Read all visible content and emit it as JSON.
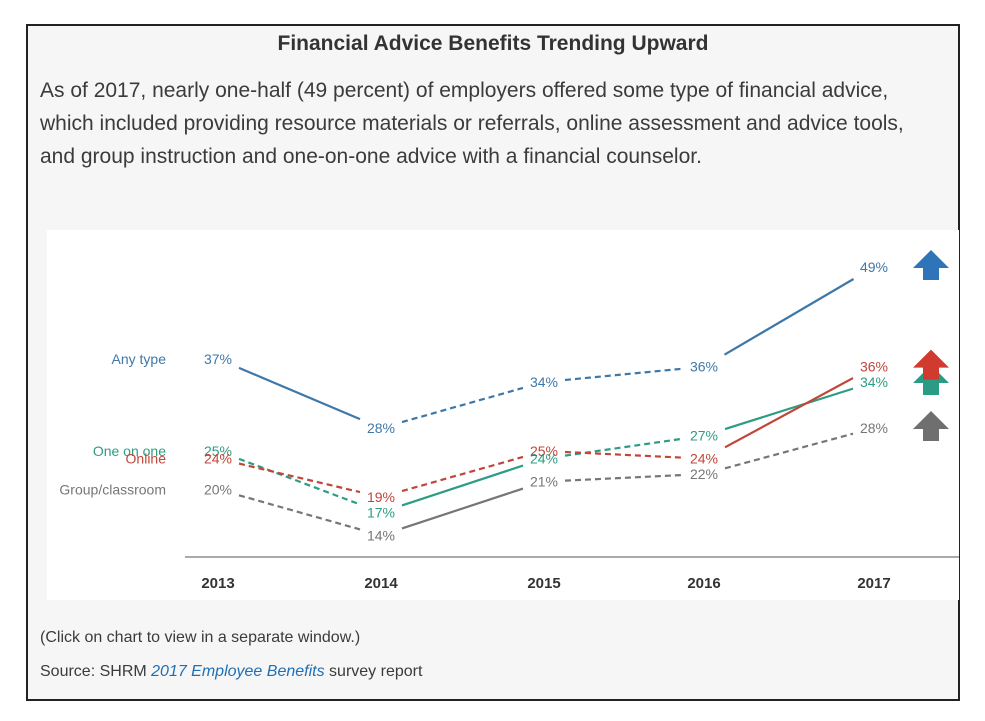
{
  "title": "Financial Advice Benefits Trending Upward",
  "intro": "As of 2017, nearly one-half (49 percent) of employers offered some type of financial advice, which included providing resource materials or referrals, online assessment and advice tools, and group instruction and one-on-one advice with a financial counselor.",
  "note": "(Click on chart to view in a separate window.)",
  "source": {
    "prefix": "Source: SHRM ",
    "link_text": "2017 Employee Benefits",
    "suffix": " survey report"
  },
  "chart_data": {
    "type": "line",
    "title": "",
    "xlabel": "",
    "ylabel": "",
    "categories": [
      "2013",
      "2014",
      "2015",
      "2016",
      "2017"
    ],
    "value_suffix": "%",
    "ylim": [
      10,
      52
    ],
    "grid": false,
    "legend": "left",
    "line_style_note": "dashed segments mark non-significant changes; solid segments mark significant changes",
    "series": [
      {
        "name": "Any type",
        "color": "#3e78a8",
        "values": [
          37,
          28,
          34,
          36,
          49
        ],
        "segments": [
          "solid",
          "dashed",
          "dashed",
          "solid"
        ],
        "trend": "up",
        "arrow_color": "#2f73b8"
      },
      {
        "name": "One on one",
        "color": "#2e9c84",
        "values": [
          25,
          17,
          24,
          27,
          34
        ],
        "segments": [
          "dashed",
          "solid",
          "dashed",
          "solid"
        ],
        "trend": "up",
        "arrow_color": "#2a9c86"
      },
      {
        "name": "Online",
        "color": "#c0463a",
        "values": [
          24,
          19,
          25,
          24,
          36
        ],
        "segments": [
          "dashed",
          "dashed",
          "dashed",
          "solid"
        ],
        "trend": "up",
        "arrow_color": "#d13b2f"
      },
      {
        "name": "Group/classroom",
        "color": "#767676",
        "values": [
          20,
          14,
          21,
          22,
          28
        ],
        "segments": [
          "dashed",
          "solid",
          "dashed",
          "dashed"
        ],
        "trend": "up",
        "arrow_color": "#6f6f6f"
      }
    ]
  }
}
